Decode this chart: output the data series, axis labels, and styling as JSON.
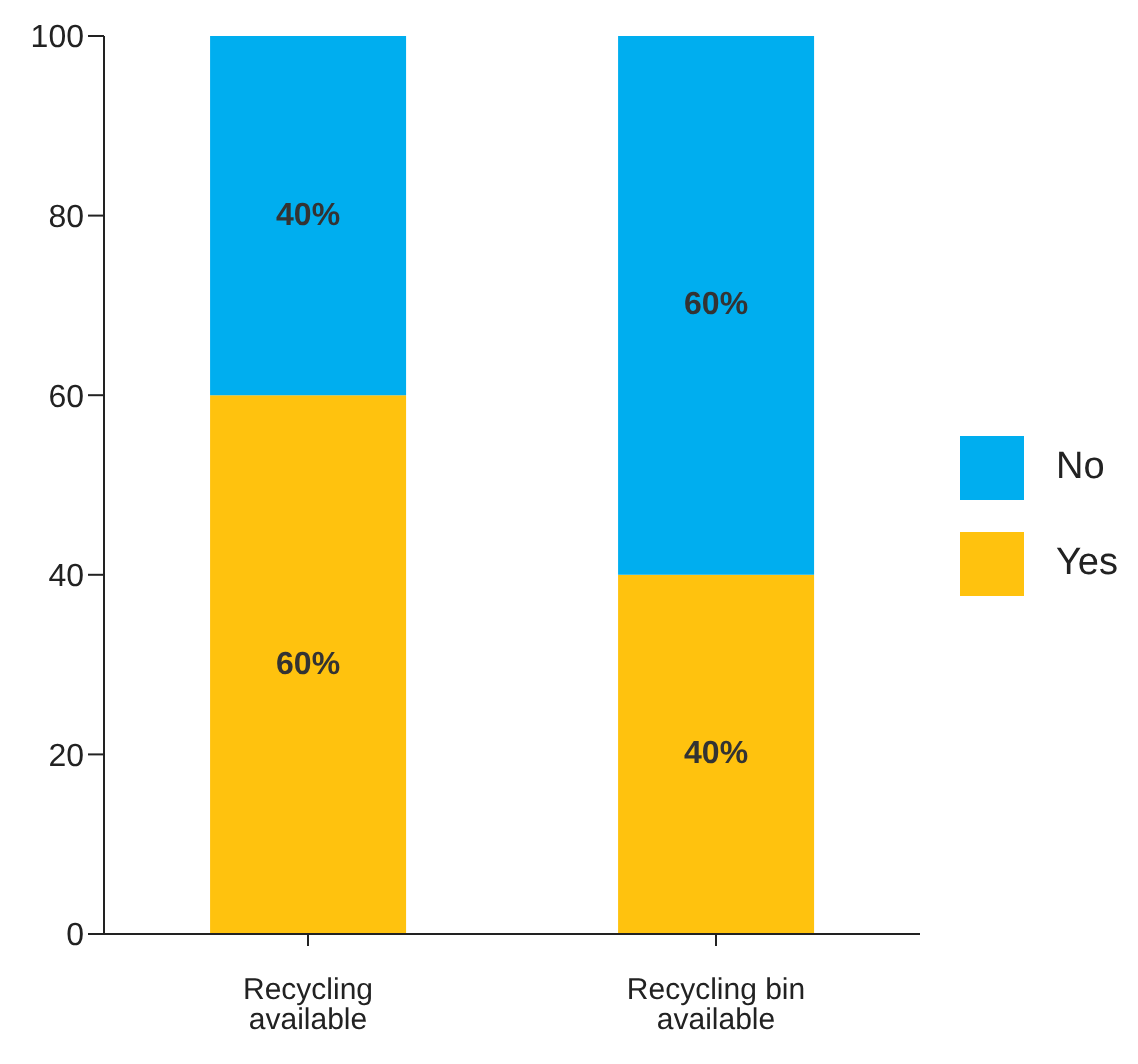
{
  "chart_data": {
    "type": "bar",
    "stacked": true,
    "categories": [
      "Recycling available",
      "Recycling bin available"
    ],
    "series": [
      {
        "name": "Yes",
        "color": "#ffc20e",
        "values": [
          60,
          40
        ],
        "value_labels": [
          "60%",
          "40%"
        ]
      },
      {
        "name": "No",
        "color": "#00aeef",
        "values": [
          40,
          60
        ],
        "value_labels": [
          "40%",
          "60%"
        ]
      }
    ],
    "ylim": [
      0,
      100
    ],
    "yticks": [
      0,
      20,
      40,
      60,
      80,
      100
    ],
    "grid": false,
    "legend": "right"
  }
}
